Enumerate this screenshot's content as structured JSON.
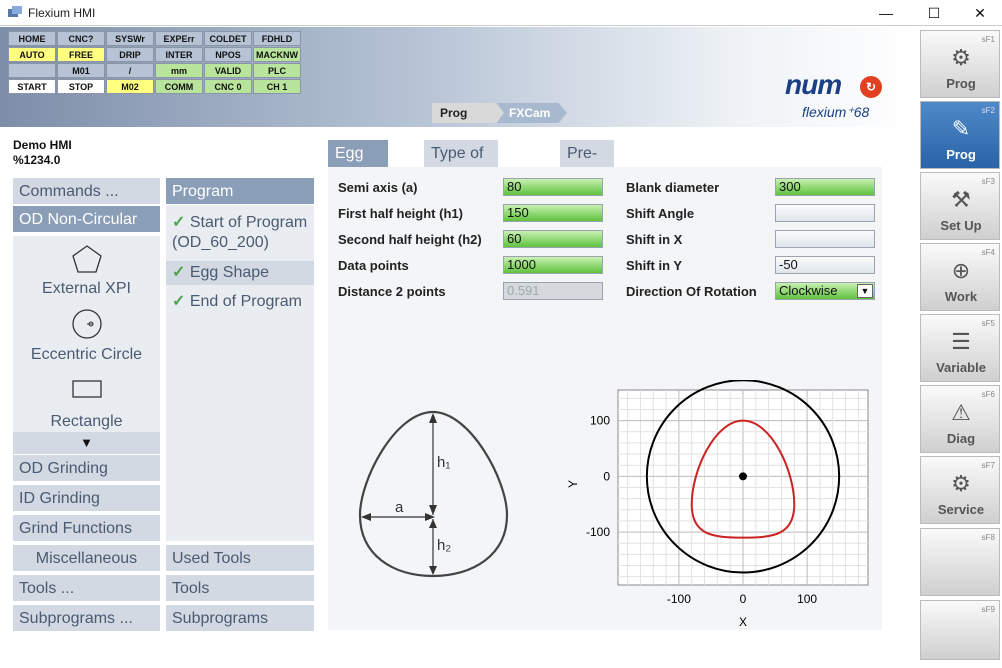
{
  "window": {
    "title": "Flexium HMI",
    "minimize": "—",
    "maximize": "☐",
    "close": "✕"
  },
  "status": [
    [
      "HOME",
      "CNC?",
      "SYSWr",
      "EXPErr",
      "COLDET",
      "FDHLD"
    ],
    [
      "AUTO",
      "FREE",
      "DRIP",
      "INTER",
      "NPOS",
      "MACKNW"
    ],
    [
      "",
      "M01",
      "/",
      "mm",
      "VALID",
      "PLC"
    ],
    [
      "START",
      "STOP",
      "M02",
      "COMM",
      "CNC 0",
      "CH 1"
    ]
  ],
  "logo": {
    "brand": "num",
    "product": "flexium⁺68"
  },
  "breadcrumb": [
    "Prog",
    "FXCam"
  ],
  "program": {
    "name": "Demo HMI",
    "number": "%1234.0"
  },
  "left_nav": {
    "commands": "Commands ...",
    "od_noncircular": "OD Non-Circular",
    "items": [
      "External XPI",
      "Eccentric Circle",
      "Rectangle"
    ],
    "od_grinding": "OD Grinding",
    "id_grinding": "ID Grinding",
    "grind_functions": "Grind Functions",
    "misc": "Miscellaneous",
    "tools": "Tools ...",
    "subprograms": "Subprograms ..."
  },
  "prog_panel": {
    "header": "Program",
    "items": [
      "Start of Program (OD_60_200)",
      "Egg Shape",
      "End of Program"
    ],
    "used_tools": "Used Tools",
    "tools": "Tools",
    "subprograms": "Subprograms"
  },
  "tabs": [
    "Egg Shape",
    "Type of Grinding",
    "Pre-Cycle"
  ],
  "form": {
    "semi_axis_label": "Semi axis (a)",
    "semi_axis": "80",
    "h1_label": "First half height (h1)",
    "h1": "150",
    "h2_label": "Second half height (h2)",
    "h2": "60",
    "points_label": "Data points",
    "points": "1000",
    "dist_label": "Distance 2 points",
    "dist": "0.591",
    "blank_label": "Blank diameter",
    "blank": "300",
    "shift_angle_label": "Shift Angle",
    "shift_angle": "",
    "shift_x_label": "Shift in X",
    "shift_x": "",
    "shift_y_label": "Shift in Y",
    "shift_y": "-50",
    "rotation_label": "Direction Of Rotation",
    "rotation": "Clockwise"
  },
  "diagram": {
    "h1": "h₁",
    "a": "a",
    "h2": "h₂"
  },
  "chart_data": {
    "type": "line",
    "xlabel": "X",
    "ylabel": "Y",
    "xlim": [
      -195,
      195
    ],
    "ylim": [
      -195,
      155
    ],
    "xticks": [
      -100,
      0,
      100
    ],
    "yticks": [
      100,
      0,
      -100
    ],
    "grid": true,
    "blank_circle_radius": 150,
    "egg": {
      "a": 80,
      "h1": 150,
      "h2": 60,
      "shift_y": -50
    },
    "center_point": [
      0,
      0
    ],
    "colors": {
      "blank": "#000000",
      "egg": "#cc2222"
    }
  },
  "softkeys": [
    {
      "key": "sF1",
      "label": "Prog",
      "icon": "⚙"
    },
    {
      "key": "sF2",
      "label": "Prog",
      "icon": "✎"
    },
    {
      "key": "sF3",
      "label": "Set Up",
      "icon": "⚒"
    },
    {
      "key": "sF4",
      "label": "Work",
      "icon": "⊕"
    },
    {
      "key": "sF5",
      "label": "Variable",
      "icon": "☰"
    },
    {
      "key": "sF6",
      "label": "Diag",
      "icon": "⚠"
    },
    {
      "key": "sF7",
      "label": "Service",
      "icon": "⚙"
    },
    {
      "key": "sF8",
      "label": "",
      "icon": ""
    },
    {
      "key": "sF9",
      "label": "",
      "icon": ""
    }
  ]
}
